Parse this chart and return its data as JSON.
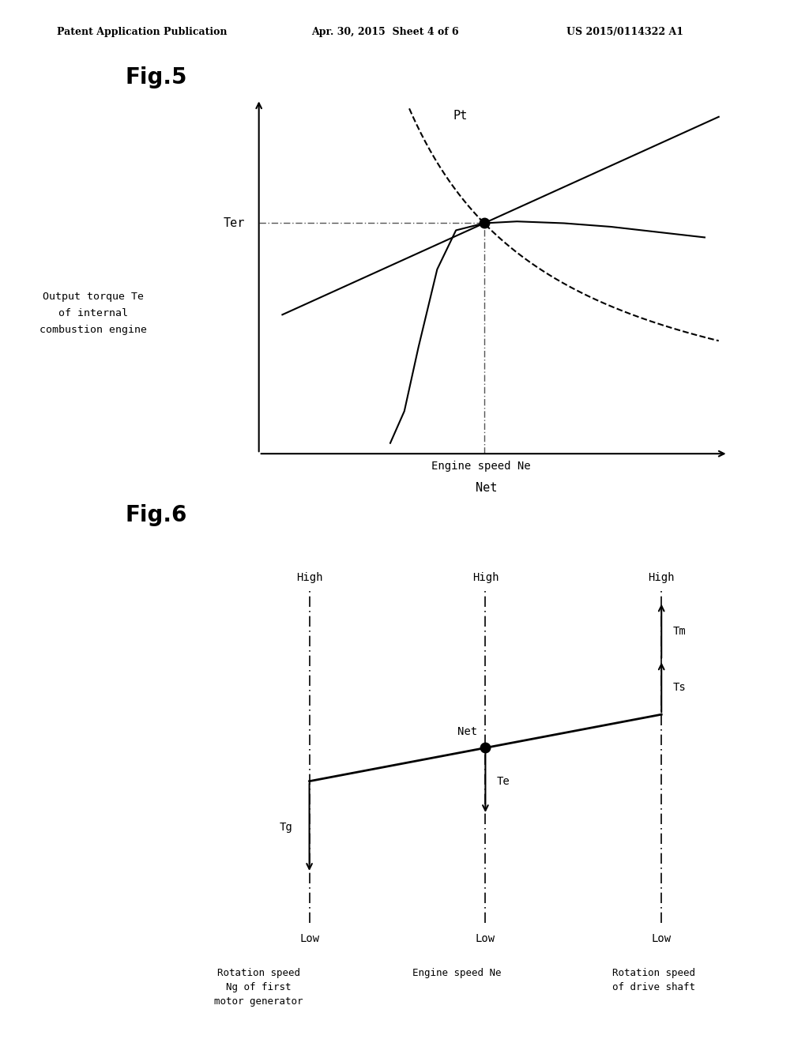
{
  "header_left": "Patent Application Publication",
  "header_mid": "Apr. 30, 2015  Sheet 4 of 6",
  "header_right": "US 2015/0114322 A1",
  "fig5_label": "Fig.5",
  "fig6_label": "Fig.6",
  "fig5_ylabel": "Output torque Te\nof internal\ncombustion engine",
  "fig5_xlabel": "Engine speed Ne",
  "fig5_Net_label": "Net",
  "fig5_Pt_label": "Pt",
  "fig5_Ter_label": "Ter",
  "fig6_bottom_labels": [
    "Rotation speed\nNg of first\nmotor generator",
    "Engine speed Ne",
    "Rotation speed\nof drive shaft"
  ],
  "fig6_Net_label": "Net",
  "fig6_Te_label": "Te",
  "fig6_Tg_label": "Tg",
  "fig6_Ts_label": "Ts",
  "fig6_Tm_label": "Tm",
  "bg_color": "#ffffff",
  "line_color": "#000000"
}
